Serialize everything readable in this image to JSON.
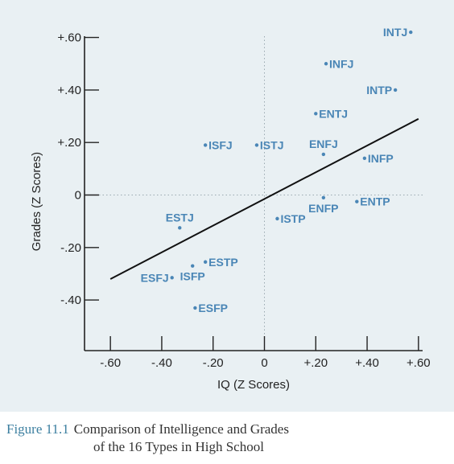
{
  "chart_data": {
    "type": "scatter",
    "xlabel": "IQ (Z Scores)",
    "ylabel": "Grades (Z Scores)",
    "xlim": [
      -0.68,
      0.62
    ],
    "ylim": [
      -0.6,
      0.62
    ],
    "x_ticks": [
      {
        "value": -0.6,
        "label": "-.60"
      },
      {
        "value": -0.4,
        "label": "-.40"
      },
      {
        "value": -0.2,
        "label": "-.20"
      },
      {
        "value": 0.0,
        "label": "0"
      },
      {
        "value": 0.2,
        "label": "+.20"
      },
      {
        "value": 0.4,
        "label": "+.40"
      },
      {
        "value": 0.6,
        "label": "+.60"
      }
    ],
    "y_ticks": [
      {
        "value": 0.6,
        "label": "+.60"
      },
      {
        "value": 0.4,
        "label": "+.40"
      },
      {
        "value": 0.2,
        "label": "+.20"
      },
      {
        "value": 0.0,
        "label": "0"
      },
      {
        "value": -0.2,
        "label": "-.20"
      },
      {
        "value": -0.4,
        "label": "-.40"
      }
    ],
    "zero_gridlines": true,
    "points": [
      {
        "label": "INTJ",
        "x": 0.57,
        "y": 0.62,
        "label_pos": "left"
      },
      {
        "label": "INFJ",
        "x": 0.24,
        "y": 0.5,
        "label_pos": "right"
      },
      {
        "label": "INTP",
        "x": 0.51,
        "y": 0.4,
        "label_pos": "left"
      },
      {
        "label": "ENTJ",
        "x": 0.2,
        "y": 0.31,
        "label_pos": "right"
      },
      {
        "label": "ISFJ",
        "x": -0.23,
        "y": 0.19,
        "label_pos": "right"
      },
      {
        "label": "ISTJ",
        "x": -0.03,
        "y": 0.19,
        "label_pos": "right"
      },
      {
        "label": "ENFJ",
        "x": 0.23,
        "y": 0.155,
        "label_pos": "above"
      },
      {
        "label": "INFP",
        "x": 0.39,
        "y": 0.14,
        "label_pos": "right"
      },
      {
        "label": "ENTP",
        "x": 0.36,
        "y": -0.025,
        "label_pos": "right"
      },
      {
        "label": "ENFP",
        "x": 0.23,
        "y": -0.01,
        "label_pos": "below"
      },
      {
        "label": "ISTP",
        "x": 0.05,
        "y": -0.09,
        "label_pos": "right"
      },
      {
        "label": "ESTJ",
        "x": -0.33,
        "y": -0.125,
        "label_pos": "above"
      },
      {
        "label": "ESTP",
        "x": -0.23,
        "y": -0.255,
        "label_pos": "right"
      },
      {
        "label": "ISFP",
        "x": -0.28,
        "y": -0.27,
        "label_pos": "below"
      },
      {
        "label": "ESFJ",
        "x": -0.36,
        "y": -0.315,
        "label_pos": "left"
      },
      {
        "label": "ESFP",
        "x": -0.27,
        "y": -0.43,
        "label_pos": "right"
      }
    ],
    "trend_line": {
      "x1": -0.6,
      "y1": -0.32,
      "x2": 0.6,
      "y2": 0.29
    },
    "colors": {
      "points": "#4a86b6",
      "axes": "#222222",
      "panel": "#e9f0f3"
    }
  },
  "caption": {
    "figure_number": "Figure 11.1",
    "line1": "Comparison of Intelligence and Grades",
    "line2": "of the 16 Types in High School"
  }
}
